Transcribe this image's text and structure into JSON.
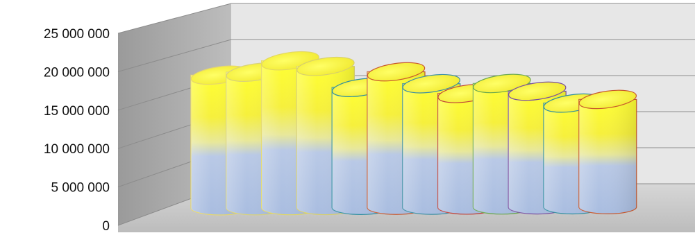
{
  "chart_data": {
    "type": "bar",
    "style": "3d-cylinder",
    "ylim": [
      0,
      25000000
    ],
    "yticks": [
      0,
      5000000,
      10000000,
      15000000,
      20000000,
      25000000
    ],
    "ytick_labels": [
      "0",
      "5 000 000",
      "10 000 000",
      "15 000 000",
      "20 000 000",
      "25 000 000"
    ],
    "grid": true,
    "legend": "none",
    "categories": [
      "",
      "",
      "",
      "",
      "",
      "",
      "",
      "",
      "",
      "",
      "",
      ""
    ],
    "values": [
      18800000,
      19200000,
      20800000,
      20000000,
      17000000,
      19200000,
      17500000,
      16100000,
      17500000,
      16400000,
      14700000,
      15200000
    ],
    "outline_colors": [
      "#e7d86a",
      "#d9d27a",
      "#e3d860",
      "#d7cf6d",
      "#2f8fa0",
      "#c8582d",
      "#3c8fa3",
      "#c0443a",
      "#6aa84f",
      "#7a4fa0",
      "#2f8fa0",
      "#c8582d"
    ],
    "colors": {
      "top": "#ffff33",
      "mid": "#f1ee6c",
      "bottom": "#b6c8e6",
      "wall": "#e7e7e7",
      "side_wall": "#a9a9a9",
      "floor": "#cfcfcf",
      "grid": "#8c8c8c"
    }
  }
}
